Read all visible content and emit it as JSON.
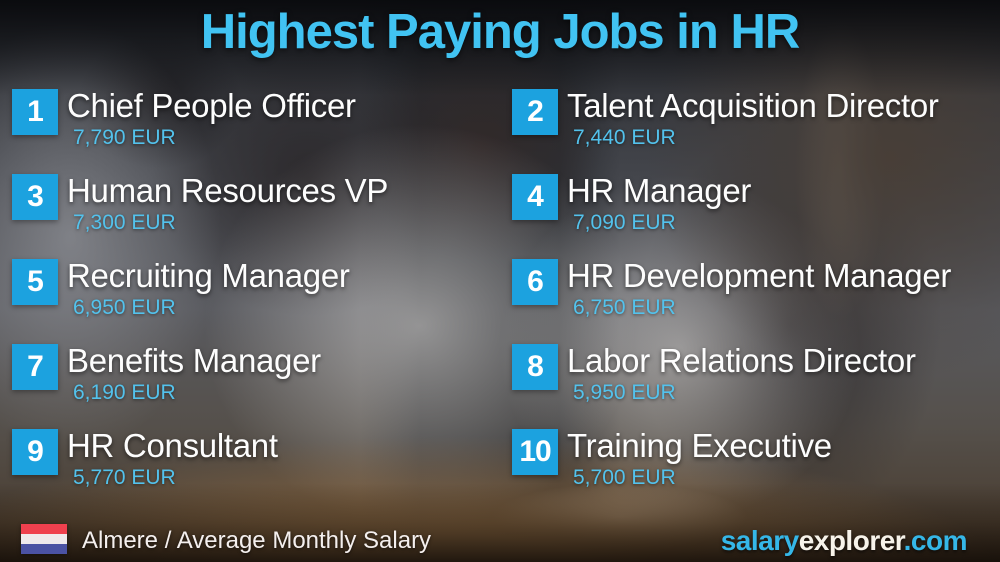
{
  "title": "Highest Paying Jobs in HR",
  "jobs": [
    {
      "rank": "1",
      "title": "Chief People Officer",
      "salary": "7,790 EUR"
    },
    {
      "rank": "2",
      "title": "Talent Acquisition Director",
      "salary": "7,440 EUR"
    },
    {
      "rank": "3",
      "title": "Human Resources VP",
      "salary": "7,300 EUR"
    },
    {
      "rank": "4",
      "title": "HR Manager",
      "salary": "7,090 EUR"
    },
    {
      "rank": "5",
      "title": "Recruiting Manager",
      "salary": "6,950 EUR"
    },
    {
      "rank": "6",
      "title": "HR Development Manager",
      "salary": "6,750 EUR"
    },
    {
      "rank": "7",
      "title": "Benefits Manager",
      "salary": "6,190 EUR"
    },
    {
      "rank": "8",
      "title": "Labor Relations Director",
      "salary": "5,950 EUR"
    },
    {
      "rank": "9",
      "title": "HR Consultant",
      "salary": "5,770 EUR"
    },
    {
      "rank": "10",
      "title": "Training Executive",
      "salary": "5,700 EUR"
    }
  ],
  "footer": {
    "location_label": "Almere / Average Monthly Salary",
    "flag_icon": "netherlands-flag",
    "brand": {
      "part1": "salary",
      "part2": "explorer",
      "part3": ".com"
    }
  },
  "colors": {
    "title_accent": "#41c3f2",
    "rank_badge": "#1ca2df",
    "salary_text": "#53c2ec",
    "job_title_text": "#fdfdfd",
    "brand_accent": "#35b7e8",
    "brand_light": "#f7f3ea",
    "flag_red": "#ef404e",
    "flag_white": "#efe9ec",
    "flag_blue": "#4b52a3"
  }
}
